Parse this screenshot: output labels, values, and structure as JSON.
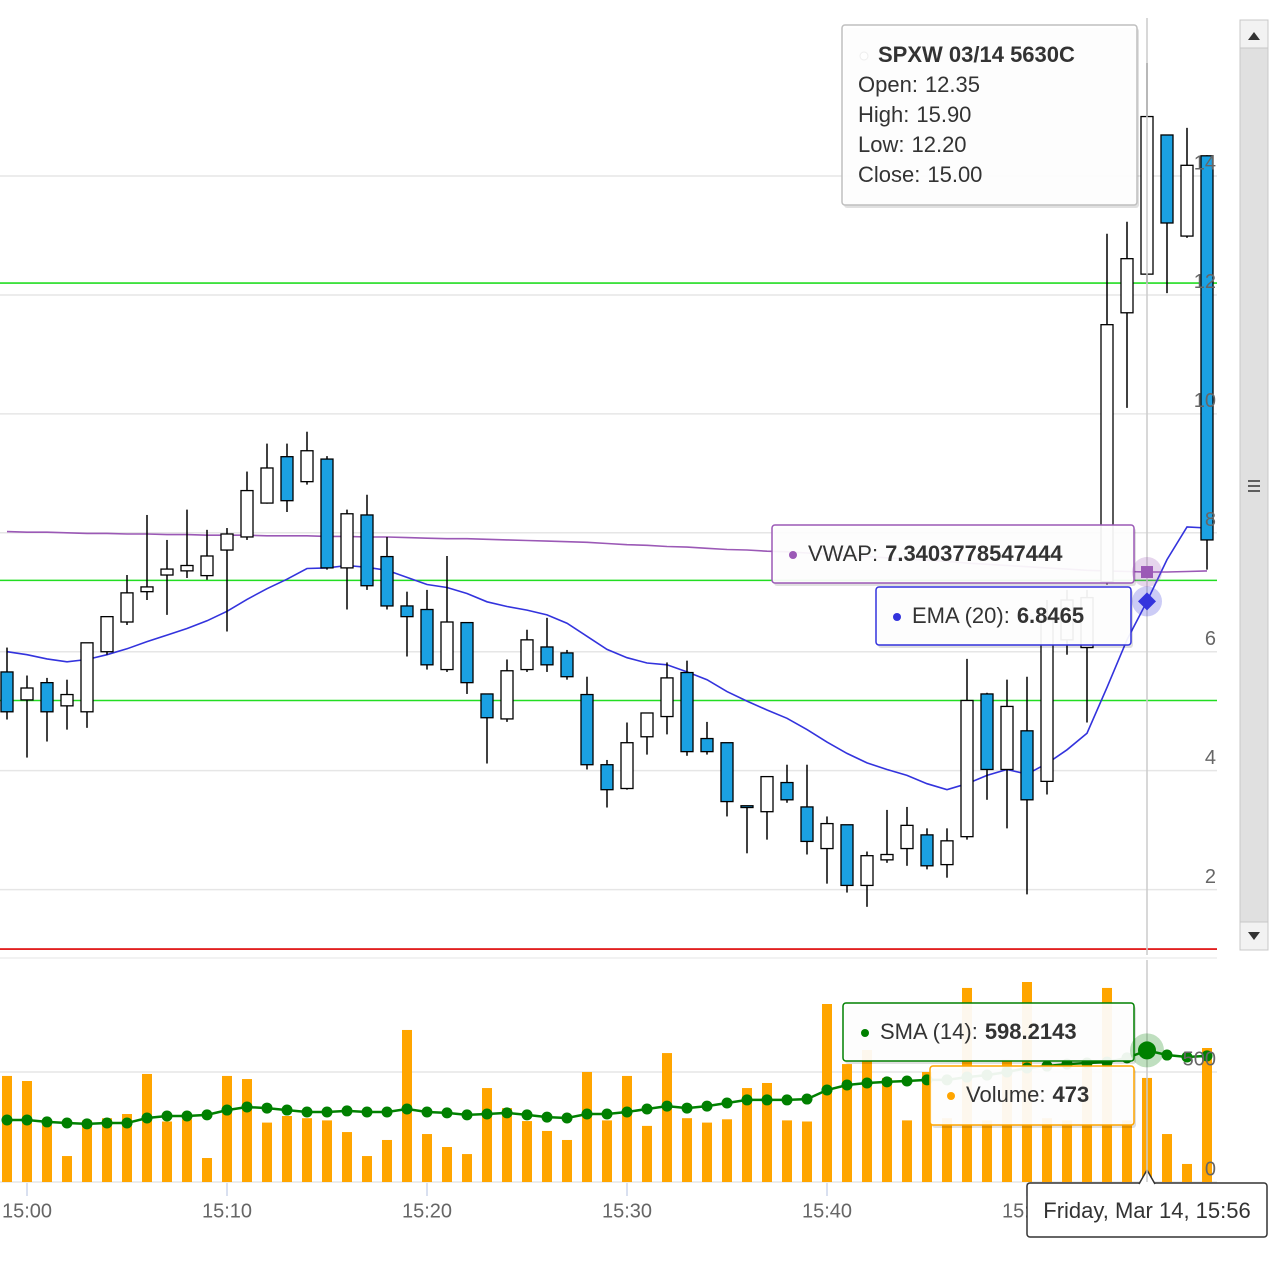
{
  "chart_data": [
    {
      "type": "candlestick",
      "x": [
        "14:59",
        "15:00",
        "15:01",
        "15:02",
        "15:03",
        "15:04",
        "15:05",
        "15:06",
        "15:07",
        "15:08",
        "15:09",
        "15:10",
        "15:11",
        "15:12",
        "15:13",
        "15:14",
        "15:15",
        "15:16",
        "15:17",
        "15:18",
        "15:19",
        "15:20",
        "15:21",
        "15:22",
        "15:23",
        "15:24",
        "15:25",
        "15:26",
        "15:27",
        "15:28",
        "15:29",
        "15:30",
        "15:31",
        "15:32",
        "15:33",
        "15:34",
        "15:35",
        "15:36",
        "15:37",
        "15:38",
        "15:39",
        "15:40",
        "15:41",
        "15:42",
        "15:43",
        "15:44",
        "15:45",
        "15:46",
        "15:47",
        "15:48",
        "15:49",
        "15:50",
        "15:51",
        "15:52",
        "15:53",
        "15:54",
        "15:55",
        "15:56",
        "15:57",
        "15:58",
        "15:59"
      ],
      "open": [
        5.66,
        5.19,
        5.48,
        5.09,
        4.99,
        6.0,
        6.5,
        7.01,
        7.29,
        7.36,
        7.28,
        7.71,
        7.93,
        8.5,
        9.28,
        8.86,
        9.24,
        7.41,
        8.3,
        7.6,
        6.77,
        6.71,
        5.7,
        6.49,
        5.29,
        4.87,
        5.7,
        6.08,
        5.98,
        5.28,
        4.1,
        3.7,
        4.57,
        4.91,
        5.65,
        4.54,
        4.47,
        3.41,
        3.31,
        3.8,
        3.39,
        2.69,
        3.09,
        2.07,
        2.5,
        2.69,
        2.92,
        2.42,
        2.89,
        5.29,
        4.02,
        4.67,
        3.82,
        6.2,
        6.07,
        7.18,
        11.7,
        12.35,
        14.69,
        12.99,
        14.34
      ],
      "high": [
        6.07,
        5.6,
        5.56,
        5.53,
        6.15,
        6.59,
        7.29,
        8.3,
        7.88,
        8.39,
        8.05,
        8.08,
        9.03,
        9.5,
        9.5,
        9.7,
        9.29,
        8.39,
        8.64,
        7.93,
        7.01,
        7.04,
        7.61,
        6.49,
        5.29,
        5.87,
        6.37,
        6.57,
        6.03,
        5.58,
        4.18,
        4.81,
        4.97,
        5.82,
        5.85,
        4.82,
        4.47,
        3.41,
        3.9,
        4.1,
        4.1,
        3.23,
        3.09,
        2.64,
        3.34,
        3.39,
        3.03,
        3.03,
        5.88,
        5.31,
        5.53,
        5.58,
        6.87,
        7.04,
        7.04,
        13.03,
        13.23,
        15.9,
        14.69,
        14.81,
        14.35
      ],
      "low": [
        4.86,
        4.22,
        4.49,
        4.69,
        4.72,
        5.95,
        6.45,
        6.87,
        6.62,
        7.24,
        7.21,
        6.34,
        7.88,
        8.49,
        8.35,
        8.81,
        7.38,
        6.71,
        7.04,
        6.71,
        5.92,
        5.7,
        5.66,
        5.29,
        4.12,
        4.82,
        5.66,
        5.66,
        5.53,
        4.02,
        3.38,
        3.68,
        4.27,
        4.61,
        4.25,
        4.27,
        3.23,
        2.61,
        2.84,
        3.46,
        2.59,
        2.1,
        1.95,
        1.71,
        2.45,
        2.4,
        2.34,
        2.2,
        2.84,
        3.51,
        3.03,
        1.92,
        3.6,
        5.95,
        4.81,
        7.13,
        10.1,
        12.2,
        12.03,
        12.96,
        7.38
      ],
      "close": [
        4.99,
        5.39,
        4.99,
        5.28,
        6.15,
        6.59,
        6.99,
        7.09,
        7.39,
        7.45,
        7.61,
        7.98,
        8.71,
        9.09,
        8.54,
        9.38,
        7.41,
        8.32,
        7.11,
        6.77,
        6.59,
        5.78,
        6.5,
        5.48,
        4.89,
        5.68,
        6.2,
        5.78,
        5.58,
        4.1,
        3.68,
        4.47,
        4.97,
        5.56,
        4.32,
        4.32,
        3.48,
        3.38,
        3.9,
        3.51,
        2.81,
        3.11,
        2.07,
        2.57,
        2.59,
        3.08,
        2.4,
        2.82,
        5.18,
        4.02,
        5.08,
        3.51,
        6.54,
        6.87,
        6.91,
        11.5,
        12.61,
        15,
        13.21,
        14.18,
        7.88
      ],
      "up_color": "#ffffff",
      "down_color": "#1ba1e2",
      "series": [
        {
          "name": "VWAP:",
          "color": "#9b59b6",
          "values": [
            8.02,
            8.01,
            8.01,
            8.0,
            7.99,
            7.99,
            7.98,
            7.98,
            7.97,
            7.97,
            7.96,
            7.96,
            7.96,
            7.95,
            7.95,
            7.95,
            7.94,
            7.94,
            7.93,
            7.93,
            7.92,
            7.91,
            7.9,
            7.9,
            7.89,
            7.88,
            7.87,
            7.86,
            7.85,
            7.84,
            7.82,
            7.8,
            7.79,
            7.77,
            7.76,
            7.74,
            7.72,
            7.71,
            7.69,
            7.68,
            7.66,
            7.64,
            7.62,
            7.6,
            7.58,
            7.56,
            7.54,
            7.52,
            7.49,
            7.47,
            7.45,
            7.43,
            7.41,
            7.39,
            7.37,
            7.36,
            7.35,
            7.3403778547444,
            7.34,
            7.35,
            7.36
          ]
        },
        {
          "name": "EMA (20):",
          "color": "#3333dd",
          "values": [
            6.0,
            5.95,
            5.88,
            5.83,
            5.87,
            5.95,
            6.05,
            6.17,
            6.28,
            6.39,
            6.52,
            6.68,
            6.88,
            7.06,
            7.22,
            7.4,
            7.41,
            7.45,
            7.42,
            7.37,
            7.25,
            7.13,
            7.08,
            6.98,
            6.84,
            6.76,
            6.7,
            6.62,
            6.48,
            6.26,
            6.04,
            5.9,
            5.81,
            5.78,
            5.66,
            5.53,
            5.33,
            5.17,
            5.02,
            4.88,
            4.69,
            4.48,
            4.29,
            4.13,
            4.02,
            3.92,
            3.78,
            3.68,
            3.78,
            3.92,
            4.02,
            3.94,
            4.12,
            4.35,
            4.63,
            5.4,
            6.2,
            6.8465,
            7.55,
            8.1,
            8.08
          ]
        }
      ],
      "levels": [
        {
          "value": 12.2,
          "color": "#22dd22"
        },
        {
          "value": 7.2,
          "color": "#22dd22"
        },
        {
          "value": 5.18,
          "color": "#22dd22"
        },
        {
          "value": 1.0,
          "color": "#dd0000"
        }
      ],
      "xlim": [
        "14:58:39",
        "15:59:30"
      ],
      "ylim": [
        0.9,
        16.96
      ],
      "yticks": [
        2,
        4,
        6,
        8,
        10,
        12,
        14
      ],
      "grid": true,
      "tooltip": {
        "title": "SPXW 03/14 5630C",
        "labels": [
          "Open:",
          "High:",
          "Low:",
          "Close:"
        ],
        "value_labels": [
          "12.35",
          "15.90",
          "12.20",
          "15.00"
        ]
      },
      "crosshair": {
        "x": "15:56",
        "label": "Friday, Mar 14, 15:56"
      }
    },
    {
      "type": "bar",
      "x": [
        "14:59",
        "15:00",
        "15:01",
        "15:02",
        "15:03",
        "15:04",
        "15:05",
        "15:06",
        "15:07",
        "15:08",
        "15:09",
        "15:10",
        "15:11",
        "15:12",
        "15:13",
        "15:14",
        "15:15",
        "15:16",
        "15:17",
        "15:18",
        "15:19",
        "15:20",
        "15:21",
        "15:22",
        "15:23",
        "15:24",
        "15:25",
        "15:26",
        "15:27",
        "15:28",
        "15:29",
        "15:30",
        "15:31",
        "15:32",
        "15:33",
        "15:34",
        "15:35",
        "15:36",
        "15:37",
        "15:38",
        "15:39",
        "15:40",
        "15:41",
        "15:42",
        "15:43",
        "15:44",
        "15:45",
        "15:46",
        "15:47",
        "15:48",
        "15:49",
        "15:50",
        "15:51",
        "15:52",
        "15:53",
        "15:54",
        "15:55",
        "15:56",
        "15:57",
        "15:58",
        "15:59"
      ],
      "name": "Volume:",
      "color": "#ffa500",
      "values": [
        482,
        459,
        260,
        118,
        280,
        290,
        309,
        491,
        275,
        285,
        109,
        482,
        468,
        270,
        300,
        290,
        280,
        227,
        118,
        191,
        691,
        218,
        159,
        127,
        427,
        336,
        277,
        232,
        191,
        500,
        280,
        482,
        255,
        586,
        290,
        270,
        285,
        427,
        450,
        280,
        275,
        809,
        536,
        600,
        473,
        280,
        500,
        290,
        882,
        280,
        555,
        909,
        290,
        280,
        555,
        882,
        280,
        473,
        218,
        82,
        609
      ],
      "series": [
        {
          "name": "SMA (14):",
          "color": "#008000",
          "values": [
            282,
            282,
            273,
            268,
            264,
            268,
            268,
            291,
            300,
            300,
            305,
            327,
            341,
            336,
            327,
            318,
            318,
            323,
            318,
            318,
            332,
            318,
            314,
            305,
            309,
            314,
            305,
            295,
            291,
            309,
            309,
            318,
            332,
            345,
            336,
            345,
            359,
            373,
            373,
            373,
            377,
            418,
            441,
            450,
            455,
            459,
            464,
            464,
            477,
            486,
            500,
            518,
            527,
            536,
            541,
            545,
            564,
            598.2143,
            577,
            568,
            573
          ]
        }
      ],
      "xlim": [
        "14:58:39",
        "15:59:30"
      ],
      "xticks": [
        "15:00",
        "15:10",
        "15:20",
        "15:30",
        "15:40",
        "15:50"
      ],
      "ylim": [
        0,
        1009
      ],
      "yticks": [
        0,
        500
      ],
      "grid": true
    }
  ]
}
